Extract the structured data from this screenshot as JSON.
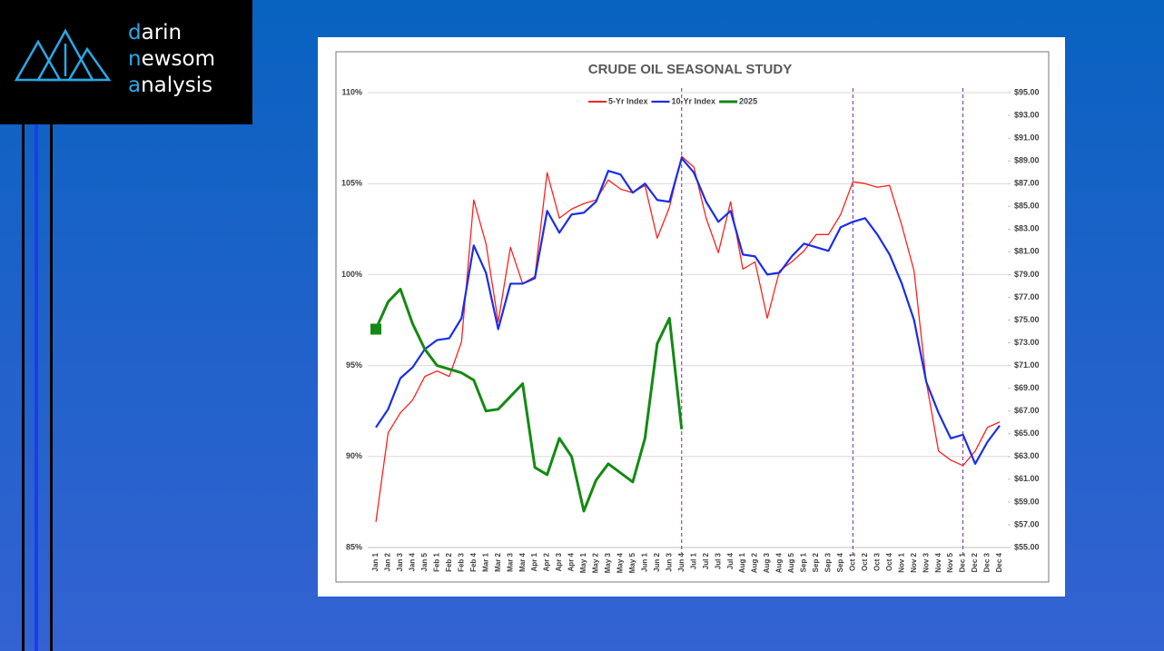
{
  "logo": {
    "lines": [
      "darin",
      "newsom",
      "analysis"
    ]
  },
  "chart_data": {
    "type": "line",
    "title": "CRUDE OIL SEASONAL STUDY",
    "categories": [
      "Jan 1",
      "Jan 2",
      "Jan 3",
      "Jan 4",
      "Jan 5",
      "Feb 1",
      "Feb 2",
      "Feb 3",
      "Feb 4",
      "Mar 1",
      "Mar 2",
      "Mar 3",
      "Mar 4",
      "Apr 1",
      "Apr 2",
      "Apr 3",
      "Apr 4",
      "May 1",
      "May 2",
      "May 3",
      "May 4",
      "May 5",
      "Jun 1",
      "Jun 2",
      "Jun 3",
      "Jun 4",
      "Jul 1",
      "Jul 2",
      "Jul 3",
      "Jul 4",
      "Aug 1",
      "Aug 2",
      "Aug 3",
      "Aug 4",
      "Aug 5",
      "Sep 1",
      "Sep 2",
      "Sep 3",
      "Sep 4",
      "Oct 1",
      "Oct 2",
      "Oct 3",
      "Oct 4",
      "Nov 1",
      "Nov 2",
      "Nov 3",
      "Nov 4",
      "Nov 5",
      "Dec 1",
      "Dec 2",
      "Dec 3",
      "Dec 4"
    ],
    "series": [
      {
        "name": "5-Yr Index",
        "color": "#ff2020",
        "width": 1.3,
        "values": [
          86.4,
          91.3,
          92.4,
          93.1,
          94.4,
          94.7,
          94.4,
          96.3,
          104.1,
          101.7,
          97.4,
          101.5,
          99.5,
          99.9,
          105.6,
          103.1,
          103.6,
          103.9,
          104.1,
          105.2,
          104.7,
          104.5,
          104.9,
          102.0,
          103.7,
          106.5,
          105.9,
          103.1,
          101.2,
          104.0,
          100.3,
          100.7,
          97.6,
          100.2,
          100.7,
          101.3,
          102.2,
          102.2,
          103.3,
          105.1,
          105.0,
          104.8,
          104.9,
          102.7,
          100.2,
          94.1,
          90.3,
          89.8,
          89.5,
          90.3,
          91.6,
          91.9
        ]
      },
      {
        "name": "10-Yr Index",
        "color": "#1a2ee8",
        "width": 2.2,
        "values": [
          91.6,
          92.6,
          94.3,
          94.9,
          95.9,
          96.4,
          96.5,
          97.6,
          101.6,
          100.1,
          97.0,
          99.5,
          99.5,
          99.8,
          103.5,
          102.3,
          103.3,
          103.4,
          104.0,
          105.7,
          105.5,
          104.5,
          105.0,
          104.1,
          104.0,
          106.4,
          105.6,
          104.0,
          102.9,
          103.5,
          101.1,
          101.0,
          100.0,
          100.1,
          101.0,
          101.7,
          101.5,
          101.3,
          102.6,
          102.9,
          103.1,
          102.2,
          101.1,
          99.5,
          97.5,
          94.1,
          92.4,
          91.0,
          91.2,
          89.6,
          90.8,
          91.7
        ]
      },
      {
        "name": "2025",
        "color": "#138a13",
        "width": 3,
        "first_marker": true,
        "values": [
          97.0,
          98.5,
          99.2,
          97.3,
          95.9,
          95.0,
          94.8,
          94.6,
          94.2,
          92.5,
          92.6,
          93.3,
          94.0,
          89.4,
          89.0,
          91.0,
          90.0,
          87.0,
          88.7,
          89.6,
          89.1,
          88.6,
          91.0,
          96.2,
          97.6,
          91.5,
          null,
          null,
          null,
          null,
          null,
          null,
          null,
          null,
          null,
          null,
          null,
          null,
          null,
          null,
          null,
          null,
          null,
          null,
          null,
          null,
          null,
          null,
          null,
          null,
          null,
          null
        ]
      }
    ],
    "ylim": [
      85,
      110
    ],
    "yticks": [
      {
        "value": 85,
        "label": "85%"
      },
      {
        "value": 90,
        "label": "90%"
      },
      {
        "value": 95,
        "label": "95%"
      },
      {
        "value": 100,
        "label": "100%"
      },
      {
        "value": 105,
        "label": "105%"
      },
      {
        "value": 110,
        "label": "110%"
      }
    ],
    "y2lim": [
      55,
      95
    ],
    "y2ticks": [
      {
        "value": 55,
        "label": "$55.00"
      },
      {
        "value": 57,
        "label": "$57.00"
      },
      {
        "value": 59,
        "label": "$59.00"
      },
      {
        "value": 61,
        "label": "$61.00"
      },
      {
        "value": 63,
        "label": "$63.00"
      },
      {
        "value": 65,
        "label": "$65.00"
      },
      {
        "value": 67,
        "label": "$67.00"
      },
      {
        "value": 69,
        "label": "$69.00"
      },
      {
        "value": 71,
        "label": "$71.00"
      },
      {
        "value": 73,
        "label": "$73.00"
      },
      {
        "value": 75,
        "label": "$75.00"
      },
      {
        "value": 77,
        "label": "$77.00"
      },
      {
        "value": 79,
        "label": "$79.00"
      },
      {
        "value": 81,
        "label": "$81.00"
      },
      {
        "value": 83,
        "label": "$83.00"
      },
      {
        "value": 85,
        "label": "$85.00"
      },
      {
        "value": 87,
        "label": "$87.00"
      },
      {
        "value": 89,
        "label": "$89.00"
      },
      {
        "value": 91,
        "label": "$91.00"
      },
      {
        "value": 93,
        "label": "$93.00"
      },
      {
        "value": 95,
        "label": "$95.00"
      }
    ],
    "grid": true,
    "legend": "top",
    "vertical_lines": [
      "Jun 4",
      "Oct 1",
      "Dec 1"
    ]
  }
}
